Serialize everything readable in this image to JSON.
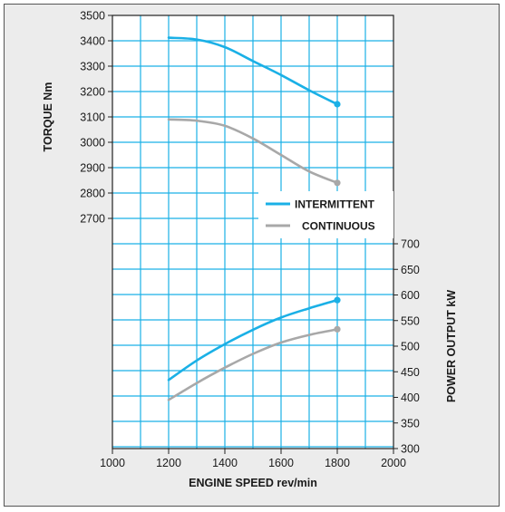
{
  "chart_data": {
    "type": "line",
    "x_ticks": [
      1000,
      1200,
      1400,
      1600,
      1800,
      2000
    ],
    "torque_ticks": [
      2700,
      2800,
      2900,
      3000,
      3100,
      3200,
      3300,
      3400,
      3500
    ],
    "power_ticks": [
      300,
      350,
      400,
      450,
      500,
      550,
      600,
      650,
      700
    ],
    "xlabel": "ENGINE SPEED rev/min",
    "ylabel_left": "TORQUE Nm",
    "ylabel_right": "POWER OUTPUT kW",
    "xlim": [
      1000,
      2000
    ],
    "torque_ylim": [
      2700,
      3500
    ],
    "power_ylim": [
      300,
      700
    ],
    "grid": true,
    "legend_position": "right-middle",
    "series": [
      {
        "name": "INTERMITTENT",
        "color": "#1ab0e6",
        "torque": {
          "x": [
            1200,
            1300,
            1400,
            1500,
            1600,
            1700,
            1800
          ],
          "y": [
            3412,
            3405,
            3375,
            3320,
            3265,
            3205,
            3150
          ]
        },
        "power": {
          "x": [
            1200,
            1300,
            1400,
            1500,
            1600,
            1700,
            1800
          ],
          "y": [
            434,
            472,
            504,
            532,
            556,
            574,
            590
          ]
        }
      },
      {
        "name": "CONTINUOUS",
        "color": "#a8a8a8",
        "torque": {
          "x": [
            1200,
            1300,
            1400,
            1500,
            1600,
            1700,
            1800
          ],
          "y": [
            3090,
            3085,
            3065,
            3015,
            2950,
            2885,
            2840
          ]
        },
        "power": {
          "x": [
            1200,
            1300,
            1400,
            1500,
            1600,
            1700,
            1800
          ],
          "y": [
            395,
            428,
            458,
            485,
            507,
            522,
            533
          ]
        }
      }
    ]
  }
}
